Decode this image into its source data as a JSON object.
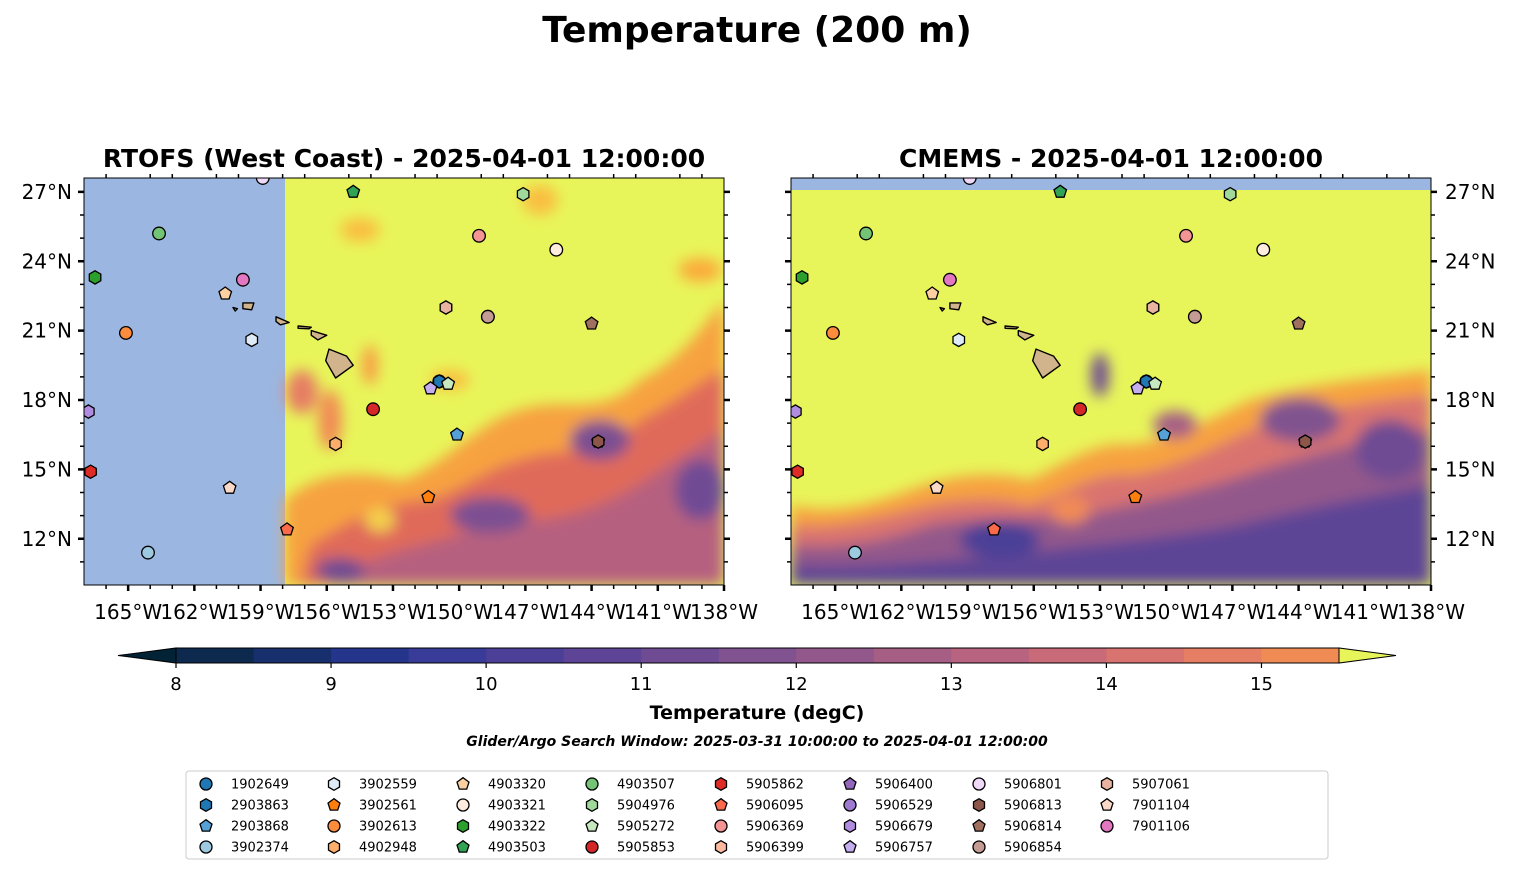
{
  "figure": {
    "title": "Temperature (200 m)",
    "colorbar_label": "Temperature (degC)",
    "search_window": "Glider/Argo Search Window: 2025-03-31 10:00:00 to 2025-04-01 12:00:00"
  },
  "chart_data": [
    {
      "type": "heatmap",
      "title": "RTOFS (West Coast) - 2025-04-01 12:00:00",
      "x_ticks": [
        "165°W",
        "162°W",
        "159°W",
        "156°W",
        "153°W",
        "150°W",
        "147°W",
        "144°W",
        "141°W",
        "138°W"
      ],
      "y_ticks": [
        "27°N",
        "24°N",
        "21°N",
        "18°N",
        "15°N",
        "12°N"
      ],
      "x_range": [
        -167,
        -138
      ],
      "y_range": [
        10,
        27.6
      ],
      "model_coverage_west_edge_lon": -157.9,
      "colors": {
        "land": "#d2b48c",
        "no_data": "#9bb6e0"
      }
    },
    {
      "type": "heatmap",
      "title": "CMEMS - 2025-04-01 12:00:00",
      "x_ticks": [
        "165°W",
        "162°W",
        "159°W",
        "156°W",
        "153°W",
        "150°W",
        "147°W",
        "144°W",
        "141°W",
        "138°W"
      ],
      "y_ticks": [
        "27°N",
        "24°N",
        "21°N",
        "18°N",
        "15°N",
        "12°N"
      ],
      "x_range": [
        -167,
        -138
      ],
      "y_range": [
        10,
        27.6
      ],
      "model_coverage_north_edge_lat": 27.1,
      "colors": {
        "land": "#d2b48c",
        "no_data": "#9bb6e0"
      }
    }
  ],
  "colorbar": {
    "min": 8,
    "max": 15.5,
    "step": 0.5,
    "ticks": [
      "8",
      "9",
      "10",
      "11",
      "12",
      "13",
      "14",
      "15"
    ],
    "extend": "both",
    "colors": [
      "#022235",
      "#0d2a4e",
      "#172f6c",
      "#24358b",
      "#383b98",
      "#4c3f97",
      "#5d4496",
      "#6e4b93",
      "#80528f",
      "#93588b",
      "#a65e85",
      "#b86380",
      "#c96a79",
      "#d97370",
      "#e67e64",
      "#f18b54",
      "#f89b44",
      "#fbab3b",
      "#fabe3f",
      "#f4d14b",
      "#e8f55a"
    ]
  },
  "floats": [
    {
      "id": "1902649",
      "marker": "circle",
      "color": "#1f77b4",
      "lon": -150.9,
      "lat": 18.8
    },
    {
      "id": "2903863",
      "marker": "hexagon",
      "color": "#1f77b4",
      "lon": -150.9,
      "lat": 18.8
    },
    {
      "id": "2903868",
      "marker": "pentagon",
      "color": "#56a0d8",
      "lon": -150.1,
      "lat": 16.5
    },
    {
      "id": "3902374",
      "marker": "circle",
      "color": "#9ecae1",
      "lon": -164.1,
      "lat": 11.4
    },
    {
      "id": "3902559",
      "marker": "hexagon",
      "color": "#deebf7",
      "lon": -159.4,
      "lat": 20.6
    },
    {
      "id": "3902561",
      "marker": "pentagon",
      "color": "#ff7f0e",
      "lon": -151.4,
      "lat": 13.8
    },
    {
      "id": "3902613",
      "marker": "circle",
      "color": "#fd8d3c",
      "lon": -165.1,
      "lat": 20.9
    },
    {
      "id": "4902948",
      "marker": "hexagon",
      "color": "#fdae6b",
      "lon": -155.6,
      "lat": 16.1
    },
    {
      "id": "4903320",
      "marker": "pentagon",
      "color": "#fdd0a2",
      "lon": -160.6,
      "lat": 22.6
    },
    {
      "id": "4903321",
      "marker": "circle",
      "color": "#feedde",
      "lon": -145.6,
      "lat": 24.5
    },
    {
      "id": "4903322",
      "marker": "hexagon",
      "color": "#2ca02c",
      "lon": -166.5,
      "lat": 23.3
    },
    {
      "id": "4903503",
      "marker": "pentagon",
      "color": "#31a354",
      "lon": -154.8,
      "lat": 27.0
    },
    {
      "id": "4903507",
      "marker": "circle",
      "color": "#74c476",
      "lon": -163.6,
      "lat": 25.2
    },
    {
      "id": "5904976",
      "marker": "hexagon",
      "color": "#a1d99b",
      "lon": -147.1,
      "lat": 26.9
    },
    {
      "id": "5905272",
      "marker": "pentagon",
      "color": "#c7e9c0",
      "lon": -150.5,
      "lat": 18.7
    },
    {
      "id": "5905853",
      "marker": "circle",
      "color": "#d62728",
      "lon": -153.9,
      "lat": 17.6
    },
    {
      "id": "5905862",
      "marker": "hexagon",
      "color": "#de2d26",
      "lon": -166.7,
      "lat": 14.9
    },
    {
      "id": "5906095",
      "marker": "pentagon",
      "color": "#fb6a4a",
      "lon": -157.8,
      "lat": 12.4
    },
    {
      "id": "5906369",
      "marker": "circle",
      "color": "#f49494",
      "lon": -149.1,
      "lat": 25.1
    },
    {
      "id": "5906399",
      "marker": "hexagon",
      "color": "#fcbba1",
      "lon": -150.6,
      "lat": 22.0
    },
    {
      "id": "5906400",
      "marker": "pentagon",
      "color": "#9467bd",
      "lon": -143.7,
      "lat": 16.2
    },
    {
      "id": "5906529",
      "marker": "circle",
      "color": "#9e7bd1",
      "lon": -148.7,
      "lat": 21.6
    },
    {
      "id": "5906679",
      "marker": "hexagon",
      "color": "#b08ce0",
      "lon": -166.8,
      "lat": 17.5
    },
    {
      "id": "5906757",
      "marker": "pentagon",
      "color": "#c5aef0",
      "lon": -151.3,
      "lat": 18.5
    },
    {
      "id": "5906801",
      "marker": "circle",
      "color": "#eedaf8",
      "lon": -158.9,
      "lat": 27.6
    },
    {
      "id": "5906813",
      "marker": "hexagon",
      "color": "#8c564b",
      "lon": -143.7,
      "lat": 16.2
    },
    {
      "id": "5906814",
      "marker": "pentagon",
      "color": "#a0705f",
      "lon": -144.0,
      "lat": 21.3
    },
    {
      "id": "5906854",
      "marker": "circle",
      "color": "#c49c94",
      "lon": -148.7,
      "lat": 21.6
    },
    {
      "id": "5907061",
      "marker": "hexagon",
      "color": "#e8b4a0",
      "lon": -150.6,
      "lat": 22.0
    },
    {
      "id": "7901104",
      "marker": "pentagon",
      "color": "#fbd9c9",
      "lon": -160.4,
      "lat": 14.2
    },
    {
      "id": "7901106",
      "marker": "circle",
      "color": "#e377c2",
      "lon": -159.8,
      "lat": 23.2
    }
  ]
}
